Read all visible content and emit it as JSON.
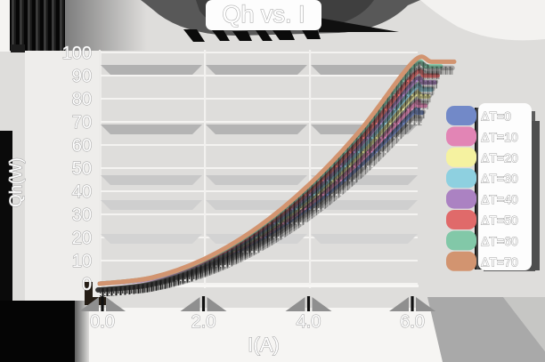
{
  "title": "Qh vs. I",
  "x_axis": {
    "label": "I(A)",
    "ticks": [
      "0.0",
      "2.0",
      "4.0",
      "6.0"
    ]
  },
  "y_axis": {
    "label": "Qh(W)",
    "ticks": [
      "100",
      "90",
      "80",
      "70",
      "60",
      "50",
      "40",
      "30",
      "20",
      "10",
      "0"
    ]
  },
  "chart_data": {
    "type": "line",
    "title": "Qh vs. I",
    "xlabel": "I(A)",
    "ylabel": "Qh(W)",
    "xlim": [
      0.0,
      6.0
    ],
    "ylim": [
      0,
      100
    ],
    "grid": true,
    "legend_position": "right",
    "x": [
      0,
      1,
      2,
      3,
      4,
      5,
      6
    ],
    "series": [
      {
        "name": "ΔT=0",
        "color": "#7289c8",
        "values": [
          0,
          2.1,
          8.2,
          18.5,
          32.9,
          51.4,
          74
        ]
      },
      {
        "name": "ΔT=10",
        "color": "#e285b5",
        "values": [
          0,
          2.1,
          8.6,
          19.3,
          34.2,
          53.5,
          77
        ]
      },
      {
        "name": "ΔT=20",
        "color": "#f5f2a0",
        "values": [
          0,
          2.3,
          9.0,
          20.3,
          36.0,
          56.3,
          81
        ]
      },
      {
        "name": "ΔT=30",
        "color": "#8ed0e0",
        "values": [
          0,
          2.3,
          9.3,
          21.0,
          37.3,
          58.3,
          84
        ]
      },
      {
        "name": "ΔT=40",
        "color": "#ab82c2",
        "values": [
          0,
          2.4,
          9.7,
          21.8,
          38.7,
          60.4,
          87
        ]
      },
      {
        "name": "ΔT=50",
        "color": "#e06a6a",
        "values": [
          0,
          2.5,
          10.0,
          22.5,
          40.0,
          62.5,
          90
        ]
      },
      {
        "name": "ΔT=60",
        "color": "#82c8a8",
        "values": [
          0,
          2.6,
          10.4,
          23.5,
          41.8,
          65.3,
          94
        ]
      },
      {
        "name": "ΔT=70",
        "color": "#d29470",
        "values": [
          0,
          2.7,
          10.7,
          24.0,
          42.7,
          66.7,
          96
        ]
      }
    ]
  }
}
